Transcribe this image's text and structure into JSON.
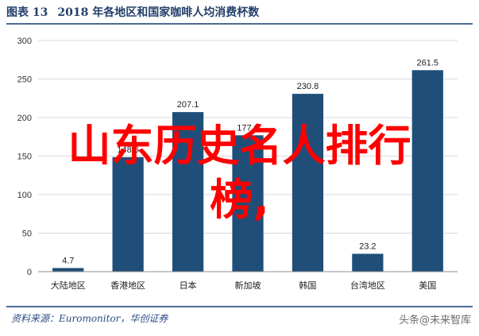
{
  "figure": {
    "label": "图表 13",
    "title": "2018 年各地区和国家咖啡人均消费杯数"
  },
  "source_text": "资料来源：Euromonitor，华创证券",
  "overlay_text": {
    "line1": "山东历史名人排行",
    "line2": "榜,"
  },
  "watermark": "头条@未来智库",
  "chart_data": {
    "type": "bar",
    "title": "2018 年各地区和国家咖啡人均消费杯数",
    "xlabel": "",
    "ylabel": "",
    "categories": [
      "大陆地区",
      "香港地区",
      "日本",
      "新加坡",
      "韩国",
      "台湾地区",
      "美国"
    ],
    "values": [
      4.7,
      148.6,
      207.1,
      177.0,
      230.8,
      23.2,
      261.5
    ],
    "value_labels": [
      "4.7",
      "148.6",
      "207.1",
      "177.0",
      "230.8",
      "23.2",
      "261.5"
    ],
    "ylim": [
      0,
      300
    ],
    "yticks": [
      0,
      50,
      100,
      150,
      200,
      250,
      300
    ],
    "bar_color": "#1f4e79",
    "grid": true,
    "legend": "none"
  }
}
